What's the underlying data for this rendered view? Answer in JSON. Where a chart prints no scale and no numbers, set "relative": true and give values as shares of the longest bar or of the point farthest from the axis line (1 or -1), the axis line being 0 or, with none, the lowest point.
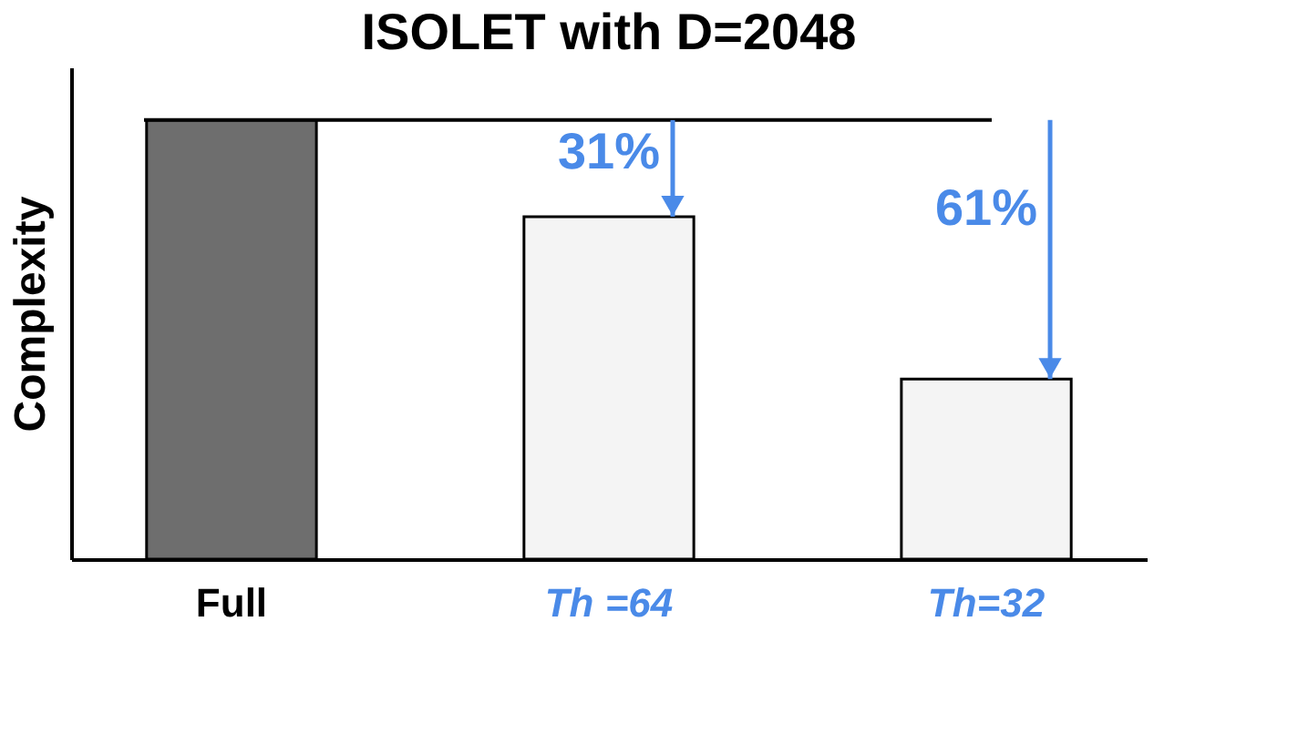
{
  "chart_data": {
    "type": "bar",
    "title": "ISOLET with D=2048",
    "ylabel": "Complexity",
    "relative": true,
    "categories": [
      "Full",
      "Th =64",
      "Th=32"
    ],
    "values": [
      1,
      0.78,
      0.41
    ],
    "colors": [
      "#6e6e6e",
      "#f4f4f4",
      "#f4f4f4"
    ],
    "ref_lines": [
      {
        "axis": "y",
        "value": 1,
        "color": "#000000"
      }
    ],
    "annotations": [
      {
        "text": "31%",
        "x": "Th =64",
        "y": 0.78
      },
      {
        "text": "61%",
        "x": "Th=32",
        "y": 0.41
      }
    ]
  }
}
